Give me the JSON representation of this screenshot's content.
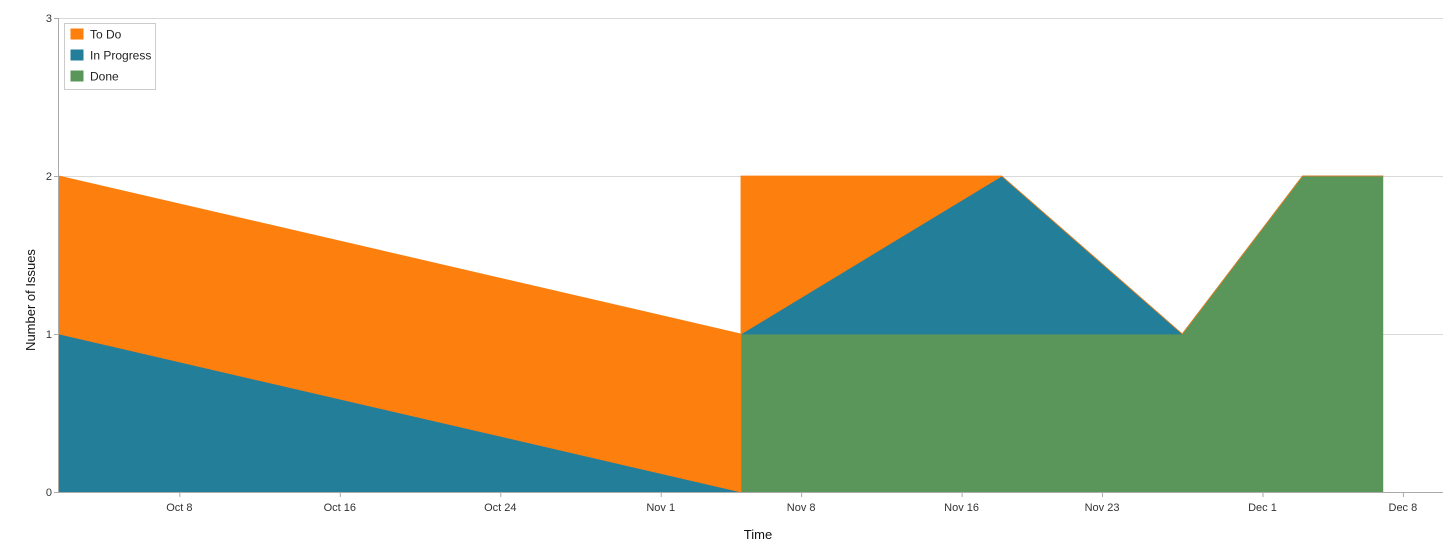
{
  "chart_data": {
    "type": "area",
    "stacked": true,
    "xlabel": "Time",
    "ylabel": "Number of Issues",
    "xlim": [
      "2015-10-02",
      "2015-12-10"
    ],
    "ylim": [
      0,
      3
    ],
    "y_ticks": [
      0,
      1,
      2,
      3
    ],
    "x_ticks": [
      {
        "date": "2015-10-08",
        "label": "Oct 8"
      },
      {
        "date": "2015-10-16",
        "label": "Oct 16"
      },
      {
        "date": "2015-10-24",
        "label": "Oct 24"
      },
      {
        "date": "2015-11-01",
        "label": "Nov 1"
      },
      {
        "date": "2015-11-08",
        "label": "Nov 8"
      },
      {
        "date": "2015-11-16",
        "label": "Nov 16"
      },
      {
        "date": "2015-11-23",
        "label": "Nov 23"
      },
      {
        "date": "2015-12-01",
        "label": "Dec 1"
      },
      {
        "date": "2015-12-08",
        "label": "Dec 8"
      }
    ],
    "grid": true,
    "legend_position": "top-left",
    "series": [
      {
        "name": "Done",
        "color": "#5a955a",
        "points": [
          [
            "2015-10-02",
            0
          ],
          [
            "2015-11-05",
            0
          ],
          [
            "2015-11-05",
            1
          ],
          [
            "2015-11-18",
            1
          ],
          [
            "2015-11-27",
            1
          ],
          [
            "2015-12-03",
            2
          ],
          [
            "2015-12-07",
            2
          ]
        ]
      },
      {
        "name": "In Progress",
        "color": "#237e99",
        "points": [
          [
            "2015-10-02",
            1
          ],
          [
            "2015-11-05",
            0
          ],
          [
            "2015-11-05",
            0
          ],
          [
            "2015-11-18",
            1
          ],
          [
            "2015-11-27",
            0
          ],
          [
            "2015-12-03",
            0
          ],
          [
            "2015-12-07",
            0
          ]
        ]
      },
      {
        "name": "To Do",
        "color": "#fd7f0e",
        "points": [
          [
            "2015-10-02",
            1
          ],
          [
            "2015-11-05",
            1
          ],
          [
            "2015-11-05",
            1
          ],
          [
            "2015-11-18",
            0
          ],
          [
            "2015-11-27",
            0
          ],
          [
            "2015-12-03",
            0
          ],
          [
            "2015-12-07",
            0
          ]
        ]
      }
    ],
    "legend": [
      {
        "name": "To Do",
        "color": "#fd7f0e"
      },
      {
        "name": "In Progress",
        "color": "#237e99"
      },
      {
        "name": "Done",
        "color": "#5a955a"
      }
    ]
  }
}
